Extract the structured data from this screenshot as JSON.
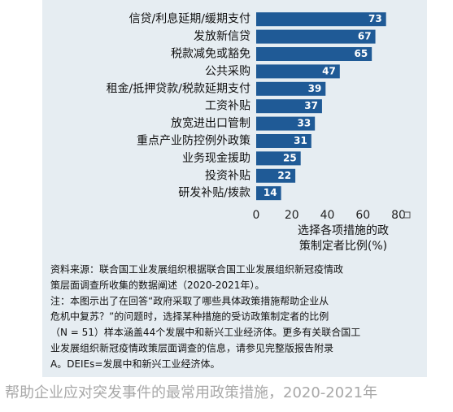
{
  "chart_data": {
    "type": "bar",
    "orientation": "horizontal",
    "categories": [
      "信贷/利息延期/缓期支付",
      "发放新信贷",
      "税款减免或豁免",
      "公共采购",
      "租金/抵押贷款/税款延期支付",
      "工资补贴",
      "放宽进出口管制",
      "重点产业防控例外政策",
      "业务现金援助",
      "投资补贴",
      "研发补贴/拨款"
    ],
    "values": [
      73,
      67,
      65,
      47,
      39,
      37,
      33,
      31,
      25,
      22,
      14
    ],
    "color": "#1f5a96",
    "xlim": [
      0,
      80
    ],
    "xticks": [
      0,
      20,
      40,
      60,
      80
    ],
    "x_label_lines": [
      "选择各项措施的政",
      "策制定者比例(%)"
    ],
    "notes": [
      "资料来源：联合国工业发展组织根据联合国工业发展组织新冠疫情政",
      "策层面调查所收集的数据阐述（2020-2021年）。",
      "注：本图示出了在回答“政府采取了哪些具体政策措施帮助企业从",
      "危机中复苏？”的问题时，选择某种措施的受访政策制定者的比例",
      "（N = 51）样本涵盖44个发展中和新兴工业经济体。更多有关联合国工",
      "业发展组织新冠疫情政策层面调查的信息，请参见完整版报告附录",
      "A。DEIEs=发展中和新兴工业经济体。"
    ],
    "caption": "帮助企业应对突发事件的最常用政策措施，2020-2021年"
  }
}
